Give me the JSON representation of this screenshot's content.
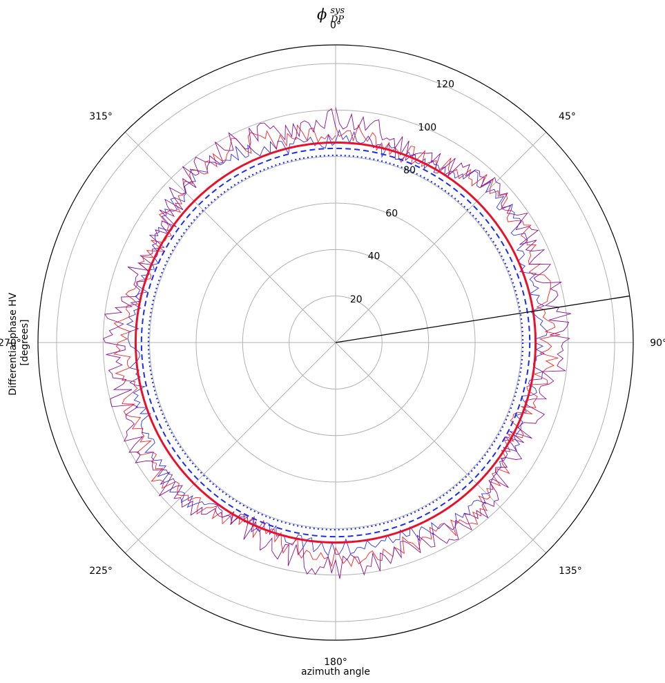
{
  "chart_data": {
    "type": "polar-line",
    "title": {
      "main": "ϕ",
      "subscript": "DP",
      "superscript": "sys"
    },
    "xlabel": "azimuth angle",
    "ylabel_line1": "Differential phase HV",
    "ylabel_line2": "[degrees]",
    "theta_direction": "clockwise",
    "theta_zero": "north",
    "theta_ticks": [
      {
        "deg": 0,
        "label": "0°"
      },
      {
        "deg": 45,
        "label": "45°"
      },
      {
        "deg": 90,
        "label": "90°"
      },
      {
        "deg": 135,
        "label": "135°"
      },
      {
        "deg": 180,
        "label": "180°"
      },
      {
        "deg": 225,
        "label": "225°"
      },
      {
        "deg": 270,
        "label": "270°"
      },
      {
        "deg": 315,
        "label": "315°"
      }
    ],
    "r_ticks": [
      20,
      40,
      60,
      80,
      100,
      120
    ],
    "r_tick_label_angle_deg": 22.5,
    "rlim": [
      0,
      128
    ],
    "grid": true,
    "reference_line": {
      "azimuth_deg": 81,
      "color": "#000000"
    },
    "mean_circles": [
      {
        "value": 86,
        "color": "#e8102a",
        "style": "solid"
      },
      {
        "value": 83.5,
        "color": "#1a2cf0",
        "style": "dashed"
      },
      {
        "value": 80.5,
        "color": "#1a2cf0",
        "style": "dotted"
      }
    ],
    "series": [
      {
        "color": "#3030ff",
        "base": 88,
        "amplitude": 7,
        "seed": 3
      },
      {
        "color": "#ff2020",
        "base": 90,
        "amplitude": 9,
        "seed": 7
      },
      {
        "color": "#8a1090",
        "base": 92,
        "amplitude": 11,
        "seed": 11
      }
    ],
    "num_samples": 360
  }
}
